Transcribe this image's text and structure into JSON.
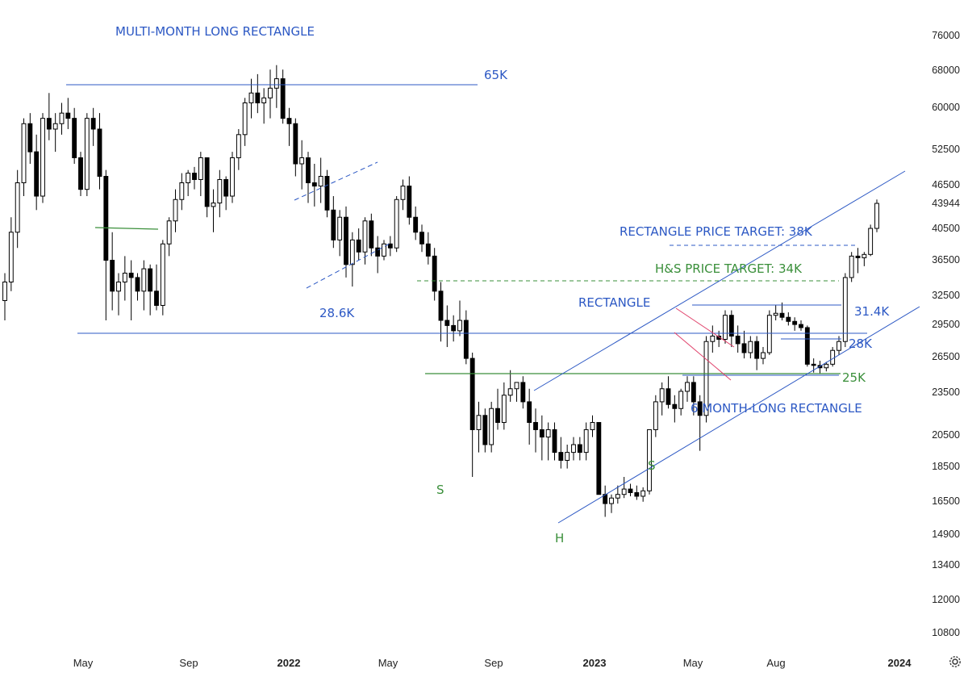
{
  "chart_data": {
    "type": "candlestick",
    "y_scale": "log",
    "y_ticks": [
      "76000",
      "68000",
      "60000",
      "52500",
      "46500",
      "43944",
      "40500",
      "36500",
      "32500",
      "29500",
      "26500",
      "23500",
      "20500",
      "18500",
      "16500",
      "14900",
      "13400",
      "12000",
      "10800"
    ],
    "x_ticks": [
      {
        "label": "May",
        "bold": false
      },
      {
        "label": "Sep",
        "bold": false
      },
      {
        "label": "2022",
        "bold": true
      },
      {
        "label": "May",
        "bold": false
      },
      {
        "label": "Sep",
        "bold": false
      },
      {
        "label": "2023",
        "bold": true
      },
      {
        "label": "May",
        "bold": false
      },
      {
        "label": "Aug",
        "bold": false
      },
      {
        "label": "2024",
        "bold": true
      }
    ],
    "last_price": 43944,
    "candles_ohlc": [
      [
        32000,
        35000,
        30000,
        34000
      ],
      [
        34000,
        42000,
        33000,
        40000
      ],
      [
        40000,
        49000,
        38000,
        47000
      ],
      [
        47000,
        58000,
        45000,
        57000
      ],
      [
        57000,
        59000,
        50000,
        52000
      ],
      [
        52000,
        55000,
        43000,
        45000
      ],
      [
        45000,
        59000,
        44000,
        58000
      ],
      [
        58000,
        63000,
        54000,
        56000
      ],
      [
        56000,
        59000,
        52000,
        57000
      ],
      [
        57000,
        61000,
        55000,
        59000
      ],
      [
        59000,
        62000,
        56000,
        58000
      ],
      [
        58000,
        60000,
        50000,
        51000
      ],
      [
        51000,
        52000,
        45000,
        46000
      ],
      [
        46000,
        59000,
        45000,
        58000
      ],
      [
        58000,
        60000,
        53000,
        56000
      ],
      [
        56000,
        59000,
        46000,
        48000
      ],
      [
        48000,
        49000,
        30000,
        36500
      ],
      [
        36500,
        40000,
        31000,
        33000
      ],
      [
        33000,
        35000,
        30500,
        34000
      ],
      [
        34000,
        37000,
        32000,
        35000
      ],
      [
        35000,
        36500,
        30000,
        34500
      ],
      [
        34500,
        35000,
        32000,
        33000
      ],
      [
        33000,
        36500,
        31000,
        35500
      ],
      [
        35500,
        36000,
        30500,
        33000
      ],
      [
        33000,
        36000,
        31000,
        31500
      ],
      [
        31500,
        39000,
        30500,
        38500
      ],
      [
        38500,
        42000,
        37000,
        41500
      ],
      [
        41500,
        46000,
        40000,
        44500
      ],
      [
        44500,
        48500,
        43000,
        47000
      ],
      [
        47000,
        49000,
        45000,
        48500
      ],
      [
        48500,
        49500,
        46000,
        47500
      ],
      [
        47500,
        52000,
        45000,
        51000
      ],
      [
        51000,
        48500,
        42000,
        43500
      ],
      [
        43500,
        46000,
        40000,
        44000
      ],
      [
        44000,
        49000,
        42000,
        47500
      ],
      [
        47500,
        48000,
        43000,
        45000
      ],
      [
        45000,
        52000,
        44000,
        51000
      ],
      [
        51000,
        56000,
        49000,
        55000
      ],
      [
        55000,
        62000,
        53000,
        61000
      ],
      [
        61000,
        66000,
        58000,
        63000
      ],
      [
        63000,
        67000,
        59000,
        61000
      ],
      [
        61000,
        64000,
        57000,
        62000
      ],
      [
        62000,
        68000,
        58000,
        64000
      ],
      [
        64000,
        69000,
        60000,
        66000
      ],
      [
        66000,
        68000,
        57000,
        58000
      ],
      [
        58000,
        60000,
        53000,
        57000
      ],
      [
        57000,
        58000,
        48000,
        50000
      ],
      [
        50000,
        54000,
        46000,
        51000
      ],
      [
        51000,
        52000,
        44000,
        47000
      ],
      [
        47000,
        50000,
        43500,
        46500
      ],
      [
        46500,
        51000,
        44000,
        48000
      ],
      [
        48000,
        49000,
        42000,
        43000
      ],
      [
        43000,
        45000,
        38000,
        39000
      ],
      [
        39000,
        43000,
        37000,
        42000
      ],
      [
        42000,
        43500,
        34500,
        36000
      ],
      [
        36000,
        40000,
        33500,
        39000
      ],
      [
        39000,
        40500,
        36500,
        37500
      ],
      [
        37500,
        42000,
        36000,
        41500
      ],
      [
        41500,
        42500,
        37000,
        38000
      ],
      [
        38000,
        39500,
        35000,
        37000
      ],
      [
        37000,
        39000,
        36500,
        38500
      ],
      [
        38500,
        39500,
        37000,
        38000
      ],
      [
        38000,
        45000,
        37500,
        44500
      ],
      [
        44500,
        47500,
        43000,
        46500
      ],
      [
        46500,
        48000,
        41000,
        42000
      ],
      [
        42000,
        43500,
        39000,
        40000
      ],
      [
        40000,
        41000,
        37500,
        38500
      ],
      [
        38500,
        40000,
        36000,
        37000
      ],
      [
        37000,
        38000,
        32000,
        33000
      ],
      [
        33000,
        34000,
        28000,
        30000
      ],
      [
        30000,
        31500,
        27500,
        29500
      ],
      [
        29500,
        30500,
        28000,
        29000
      ],
      [
        29000,
        32000,
        28500,
        30000
      ],
      [
        30000,
        31000,
        26000,
        26500
      ],
      [
        26500,
        27000,
        18000,
        21000
      ],
      [
        21000,
        23000,
        19500,
        22000
      ],
      [
        22000,
        22500,
        19500,
        20000
      ],
      [
        20000,
        23000,
        19500,
        22500
      ],
      [
        22500,
        24000,
        21000,
        21500
      ],
      [
        21500,
        24500,
        21000,
        23500
      ],
      [
        23500,
        25500,
        23000,
        24000
      ],
      [
        24000,
        24500,
        23000,
        24500
      ],
      [
        24500,
        25000,
        22500,
        23000
      ],
      [
        23000,
        24000,
        20000,
        21500
      ],
      [
        21500,
        22500,
        19500,
        21000
      ],
      [
        21000,
        22000,
        19000,
        20500
      ],
      [
        20500,
        21500,
        19000,
        21000
      ],
      [
        21000,
        21500,
        19000,
        19500
      ],
      [
        19500,
        20500,
        18500,
        19000
      ],
      [
        19000,
        20000,
        18500,
        19500
      ],
      [
        19500,
        20500,
        19000,
        20000
      ],
      [
        20000,
        20500,
        19000,
        19500
      ],
      [
        19500,
        21500,
        19000,
        21000
      ],
      [
        21000,
        22000,
        20500,
        21500
      ],
      [
        21500,
        21500,
        17000,
        17000
      ],
      [
        17000,
        17500,
        15800,
        16500
      ],
      [
        16500,
        17000,
        16000,
        16800
      ],
      [
        16800,
        17500,
        16500,
        17000
      ],
      [
        17000,
        18000,
        16800,
        17300
      ],
      [
        17300,
        17600,
        16900,
        17100
      ],
      [
        17100,
        17500,
        16700,
        16900
      ],
      [
        16900,
        17400,
        16600,
        17200
      ],
      [
        17200,
        21000,
        17000,
        21000
      ],
      [
        21000,
        23500,
        20500,
        23000
      ],
      [
        23000,
        24500,
        22000,
        24000
      ],
      [
        24000,
        25000,
        22500,
        22800
      ],
      [
        22800,
        23500,
        21500,
        22500
      ],
      [
        22500,
        24000,
        22000,
        23800
      ],
      [
        23800,
        25000,
        23000,
        24500
      ],
      [
        24500,
        25000,
        22000,
        23000
      ],
      [
        23000,
        23500,
        19600,
        22000
      ],
      [
        22000,
        28500,
        21500,
        28000
      ],
      [
        28000,
        29500,
        27000,
        28500
      ],
      [
        28500,
        29000,
        27500,
        28200
      ],
      [
        28200,
        31000,
        27800,
        30500
      ],
      [
        30500,
        31000,
        27500,
        28500
      ],
      [
        28500,
        29500,
        27000,
        27800
      ],
      [
        27800,
        29000,
        26500,
        27000
      ],
      [
        27000,
        28500,
        26500,
        28000
      ],
      [
        28000,
        28500,
        25500,
        26500
      ],
      [
        26500,
        27500,
        26000,
        27000
      ],
      [
        27000,
        31000,
        26800,
        30500
      ],
      [
        30500,
        31500,
        30000,
        30700
      ],
      [
        30700,
        31800,
        30000,
        30300
      ],
      [
        30300,
        30800,
        29500,
        29900
      ],
      [
        29900,
        30300,
        29000,
        29600
      ],
      [
        29600,
        30000,
        29000,
        29300
      ],
      [
        29300,
        29500,
        25800,
        26000
      ],
      [
        26000,
        26500,
        25300,
        25900
      ],
      [
        25900,
        26300,
        25200,
        25700
      ],
      [
        25700,
        26200,
        25400,
        26000
      ],
      [
        26000,
        27500,
        25800,
        27200
      ],
      [
        27200,
        28500,
        26800,
        28000
      ],
      [
        28000,
        35000,
        27500,
        34500
      ],
      [
        34500,
        37500,
        34000,
        37000
      ],
      [
        37000,
        38000,
        35000,
        36800
      ],
      [
        36800,
        37500,
        35800,
        37200
      ],
      [
        37200,
        41000,
        37000,
        40500
      ],
      [
        40500,
        44500,
        40000,
        43944
      ]
    ],
    "annotations": [
      {
        "text": "MULTI-MONTH LONG RECTANGLE",
        "color": "blue"
      },
      {
        "text": "65K",
        "color": "blue"
      },
      {
        "text": "28.6K",
        "color": "blue"
      },
      {
        "text": "RECTANGLE PRICE TARGET: 38K",
        "color": "blue"
      },
      {
        "text": "H&S PRICE TARGET: 34K",
        "color": "green"
      },
      {
        "text": "RECTANGLE",
        "color": "blue"
      },
      {
        "text": "31.4K",
        "color": "blue"
      },
      {
        "text": "28K",
        "color": "blue"
      },
      {
        "text": "25K",
        "color": "green"
      },
      {
        "text": "6 MONTH-LONG RECTANGLE",
        "color": "blue"
      },
      {
        "text": "S",
        "color": "green"
      },
      {
        "text": "S",
        "color": "green"
      },
      {
        "text": "H",
        "color": "green"
      }
    ],
    "colors": {
      "blue": "#2c58c4",
      "green": "#3a8f3a",
      "red": "#e0406a",
      "grid": "#ffffff"
    },
    "grid": false
  }
}
